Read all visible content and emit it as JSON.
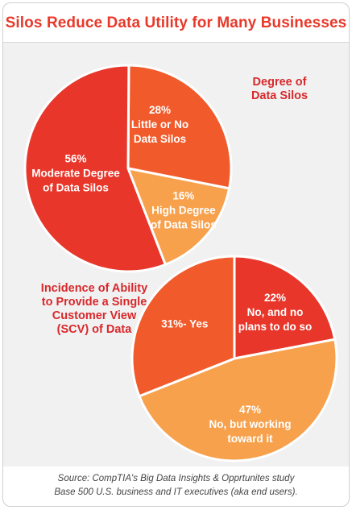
{
  "title": "Silos Reduce Data Utility for Many Businesses",
  "chart_data": [
    {
      "type": "pie",
      "title": "Degree of Data Silos",
      "slices": [
        {
          "label_lines": [
            "28%",
            "Little or No",
            "Data Silos"
          ],
          "value": 28,
          "color": "#f15a2b"
        },
        {
          "label_lines": [
            "16%",
            "High Degree",
            "of Data Silos"
          ],
          "value": 16,
          "color": "#f7a14d"
        },
        {
          "label_lines": [
            "56%",
            "Moderate Degree",
            "of Data Silos"
          ],
          "value": 56,
          "color": "#e8362a"
        }
      ]
    },
    {
      "type": "pie",
      "title": "Incidence of Ability to Provide a Single Customer View (SCV) of Data",
      "slices": [
        {
          "label_lines": [
            "22%",
            "No, and no",
            "plans to do so"
          ],
          "value": 22,
          "color": "#e8362a"
        },
        {
          "label_lines": [
            "47%",
            "No, but working",
            "toward it"
          ],
          "value": 47,
          "color": "#f7a14d"
        },
        {
          "label_lines": [
            "31%- Yes"
          ],
          "value": 31,
          "color": "#f15a2b"
        }
      ]
    }
  ],
  "captions": {
    "degree_lines": [
      "Degree of",
      "Data Silos"
    ],
    "scv_lines": [
      "Incidence of Ability",
      "to Provide a Single",
      "Customer View",
      "(SCV) of Data"
    ]
  },
  "source_lines": [
    "Source: CompTIA's Big Data Insights & Opprtunites study",
    "Base 500 U.S. business and IT executives (aka end users)."
  ]
}
